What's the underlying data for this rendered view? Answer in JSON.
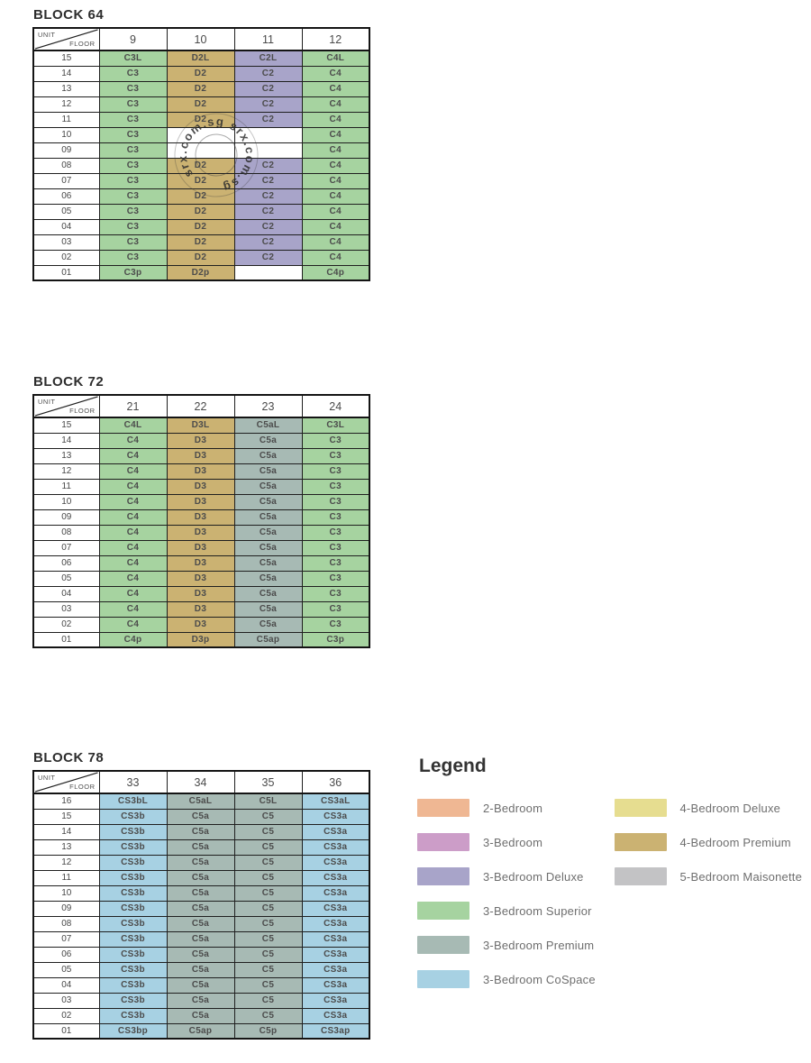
{
  "watermark": {
    "text": "srx.com.sg",
    "circle_text": "srx.com.sg  srx.com.sg"
  },
  "categories": {
    "b2": {
      "name": "2-Bedroom",
      "color": "#efb793"
    },
    "b3": {
      "name": "3-Bedroom",
      "color": "#cc9dc8"
    },
    "b3d": {
      "name": "3-Bedroom Deluxe",
      "color": "#a8a4c9"
    },
    "b3s": {
      "name": "3-Bedroom Superior",
      "color": "#a6d3a0"
    },
    "b3p": {
      "name": "3-Bedroom Premium",
      "color": "#a7bab4"
    },
    "b3c": {
      "name": "3-Bedroom CoSpace",
      "color": "#a7d1e3"
    },
    "b4d": {
      "name": "4-Bedroom Deluxe",
      "color": "#e6dd90"
    },
    "b4p": {
      "name": "4-Bedroom Premium",
      "color": "#cbb272"
    },
    "b5m": {
      "name": "5-Bedroom Maisonette",
      "color": "#c3c3c5"
    }
  },
  "chart_data": [
    {
      "type": "table",
      "title": "BLOCK 64",
      "corner_top": "UNIT",
      "corner_bottom": "FLOOR",
      "columns": [
        "9",
        "10",
        "11",
        "12"
      ],
      "rows": [
        {
          "floor": "15",
          "cells": [
            [
              "C3L",
              "b3s"
            ],
            [
              "D2L",
              "b4p"
            ],
            [
              "C2L",
              "b3d"
            ],
            [
              "C4L",
              "b3s"
            ]
          ]
        },
        {
          "floor": "14",
          "cells": [
            [
              "C3",
              "b3s"
            ],
            [
              "D2",
              "b4p"
            ],
            [
              "C2",
              "b3d"
            ],
            [
              "C4",
              "b3s"
            ]
          ]
        },
        {
          "floor": "13",
          "cells": [
            [
              "C3",
              "b3s"
            ],
            [
              "D2",
              "b4p"
            ],
            [
              "C2",
              "b3d"
            ],
            [
              "C4",
              "b3s"
            ]
          ]
        },
        {
          "floor": "12",
          "cells": [
            [
              "C3",
              "b3s"
            ],
            [
              "D2",
              "b4p"
            ],
            [
              "C2",
              "b3d"
            ],
            [
              "C4",
              "b3s"
            ]
          ]
        },
        {
          "floor": "11",
          "cells": [
            [
              "C3",
              "b3s"
            ],
            [
              "D2",
              "b4p"
            ],
            [
              "C2",
              "b3d"
            ],
            [
              "C4",
              "b3s"
            ]
          ]
        },
        {
          "floor": "10",
          "cells": [
            [
              "C3",
              "b3s"
            ],
            [
              "",
              ""
            ],
            [
              "",
              ""
            ],
            [
              "C4",
              "b3s"
            ]
          ]
        },
        {
          "floor": "09",
          "cells": [
            [
              "C3",
              "b3s"
            ],
            [
              "",
              ""
            ],
            [
              "",
              ""
            ],
            [
              "C4",
              "b3s"
            ]
          ]
        },
        {
          "floor": "08",
          "cells": [
            [
              "C3",
              "b3s"
            ],
            [
              "D2",
              "b4p"
            ],
            [
              "C2",
              "b3d"
            ],
            [
              "C4",
              "b3s"
            ]
          ]
        },
        {
          "floor": "07",
          "cells": [
            [
              "C3",
              "b3s"
            ],
            [
              "D2",
              "b4p"
            ],
            [
              "C2",
              "b3d"
            ],
            [
              "C4",
              "b3s"
            ]
          ]
        },
        {
          "floor": "06",
          "cells": [
            [
              "C3",
              "b3s"
            ],
            [
              "D2",
              "b4p"
            ],
            [
              "C2",
              "b3d"
            ],
            [
              "C4",
              "b3s"
            ]
          ]
        },
        {
          "floor": "05",
          "cells": [
            [
              "C3",
              "b3s"
            ],
            [
              "D2",
              "b4p"
            ],
            [
              "C2",
              "b3d"
            ],
            [
              "C4",
              "b3s"
            ]
          ]
        },
        {
          "floor": "04",
          "cells": [
            [
              "C3",
              "b3s"
            ],
            [
              "D2",
              "b4p"
            ],
            [
              "C2",
              "b3d"
            ],
            [
              "C4",
              "b3s"
            ]
          ]
        },
        {
          "floor": "03",
          "cells": [
            [
              "C3",
              "b3s"
            ],
            [
              "D2",
              "b4p"
            ],
            [
              "C2",
              "b3d"
            ],
            [
              "C4",
              "b3s"
            ]
          ]
        },
        {
          "floor": "02",
          "cells": [
            [
              "C3",
              "b3s"
            ],
            [
              "D2",
              "b4p"
            ],
            [
              "C2",
              "b3d"
            ],
            [
              "C4",
              "b3s"
            ]
          ]
        },
        {
          "floor": "01",
          "cells": [
            [
              "C3p",
              "b3s"
            ],
            [
              "D2p",
              "b4p"
            ],
            [
              "",
              ""
            ],
            [
              "C4p",
              "b3s"
            ]
          ]
        }
      ]
    },
    {
      "type": "table",
      "title": "BLOCK 72",
      "corner_top": "UNIT",
      "corner_bottom": "FLOOR",
      "columns": [
        "21",
        "22",
        "23",
        "24"
      ],
      "rows": [
        {
          "floor": "15",
          "cells": [
            [
              "C4L",
              "b3s"
            ],
            [
              "D3L",
              "b4p"
            ],
            [
              "C5aL",
              "b3p"
            ],
            [
              "C3L",
              "b3s"
            ]
          ]
        },
        {
          "floor": "14",
          "cells": [
            [
              "C4",
              "b3s"
            ],
            [
              "D3",
              "b4p"
            ],
            [
              "C5a",
              "b3p"
            ],
            [
              "C3",
              "b3s"
            ]
          ]
        },
        {
          "floor": "13",
          "cells": [
            [
              "C4",
              "b3s"
            ],
            [
              "D3",
              "b4p"
            ],
            [
              "C5a",
              "b3p"
            ],
            [
              "C3",
              "b3s"
            ]
          ]
        },
        {
          "floor": "12",
          "cells": [
            [
              "C4",
              "b3s"
            ],
            [
              "D3",
              "b4p"
            ],
            [
              "C5a",
              "b3p"
            ],
            [
              "C3",
              "b3s"
            ]
          ]
        },
        {
          "floor": "11",
          "cells": [
            [
              "C4",
              "b3s"
            ],
            [
              "D3",
              "b4p"
            ],
            [
              "C5a",
              "b3p"
            ],
            [
              "C3",
              "b3s"
            ]
          ]
        },
        {
          "floor": "10",
          "cells": [
            [
              "C4",
              "b3s"
            ],
            [
              "D3",
              "b4p"
            ],
            [
              "C5a",
              "b3p"
            ],
            [
              "C3",
              "b3s"
            ]
          ]
        },
        {
          "floor": "09",
          "cells": [
            [
              "C4",
              "b3s"
            ],
            [
              "D3",
              "b4p"
            ],
            [
              "C5a",
              "b3p"
            ],
            [
              "C3",
              "b3s"
            ]
          ]
        },
        {
          "floor": "08",
          "cells": [
            [
              "C4",
              "b3s"
            ],
            [
              "D3",
              "b4p"
            ],
            [
              "C5a",
              "b3p"
            ],
            [
              "C3",
              "b3s"
            ]
          ]
        },
        {
          "floor": "07",
          "cells": [
            [
              "C4",
              "b3s"
            ],
            [
              "D3",
              "b4p"
            ],
            [
              "C5a",
              "b3p"
            ],
            [
              "C3",
              "b3s"
            ]
          ]
        },
        {
          "floor": "06",
          "cells": [
            [
              "C4",
              "b3s"
            ],
            [
              "D3",
              "b4p"
            ],
            [
              "C5a",
              "b3p"
            ],
            [
              "C3",
              "b3s"
            ]
          ]
        },
        {
          "floor": "05",
          "cells": [
            [
              "C4",
              "b3s"
            ],
            [
              "D3",
              "b4p"
            ],
            [
              "C5a",
              "b3p"
            ],
            [
              "C3",
              "b3s"
            ]
          ]
        },
        {
          "floor": "04",
          "cells": [
            [
              "C4",
              "b3s"
            ],
            [
              "D3",
              "b4p"
            ],
            [
              "C5a",
              "b3p"
            ],
            [
              "C3",
              "b3s"
            ]
          ]
        },
        {
          "floor": "03",
          "cells": [
            [
              "C4",
              "b3s"
            ],
            [
              "D3",
              "b4p"
            ],
            [
              "C5a",
              "b3p"
            ],
            [
              "C3",
              "b3s"
            ]
          ]
        },
        {
          "floor": "02",
          "cells": [
            [
              "C4",
              "b3s"
            ],
            [
              "D3",
              "b4p"
            ],
            [
              "C5a",
              "b3p"
            ],
            [
              "C3",
              "b3s"
            ]
          ]
        },
        {
          "floor": "01",
          "cells": [
            [
              "C4p",
              "b3s"
            ],
            [
              "D3p",
              "b4p"
            ],
            [
              "C5ap",
              "b3p"
            ],
            [
              "C3p",
              "b3s"
            ]
          ]
        }
      ]
    },
    {
      "type": "table",
      "title": "BLOCK 78",
      "corner_top": "UNIT",
      "corner_bottom": "FLOOR",
      "columns": [
        "33",
        "34",
        "35",
        "36"
      ],
      "rows": [
        {
          "floor": "16",
          "cells": [
            [
              "CS3bL",
              "b3c"
            ],
            [
              "C5aL",
              "b3p"
            ],
            [
              "C5L",
              "b3p"
            ],
            [
              "CS3aL",
              "b3c"
            ]
          ]
        },
        {
          "floor": "15",
          "cells": [
            [
              "CS3b",
              "b3c"
            ],
            [
              "C5a",
              "b3p"
            ],
            [
              "C5",
              "b3p"
            ],
            [
              "CS3a",
              "b3c"
            ]
          ]
        },
        {
          "floor": "14",
          "cells": [
            [
              "CS3b",
              "b3c"
            ],
            [
              "C5a",
              "b3p"
            ],
            [
              "C5",
              "b3p"
            ],
            [
              "CS3a",
              "b3c"
            ]
          ]
        },
        {
          "floor": "13",
          "cells": [
            [
              "CS3b",
              "b3c"
            ],
            [
              "C5a",
              "b3p"
            ],
            [
              "C5",
              "b3p"
            ],
            [
              "CS3a",
              "b3c"
            ]
          ]
        },
        {
          "floor": "12",
          "cells": [
            [
              "CS3b",
              "b3c"
            ],
            [
              "C5a",
              "b3p"
            ],
            [
              "C5",
              "b3p"
            ],
            [
              "CS3a",
              "b3c"
            ]
          ]
        },
        {
          "floor": "11",
          "cells": [
            [
              "CS3b",
              "b3c"
            ],
            [
              "C5a",
              "b3p"
            ],
            [
              "C5",
              "b3p"
            ],
            [
              "CS3a",
              "b3c"
            ]
          ]
        },
        {
          "floor": "10",
          "cells": [
            [
              "CS3b",
              "b3c"
            ],
            [
              "C5a",
              "b3p"
            ],
            [
              "C5",
              "b3p"
            ],
            [
              "CS3a",
              "b3c"
            ]
          ]
        },
        {
          "floor": "09",
          "cells": [
            [
              "CS3b",
              "b3c"
            ],
            [
              "C5a",
              "b3p"
            ],
            [
              "C5",
              "b3p"
            ],
            [
              "CS3a",
              "b3c"
            ]
          ]
        },
        {
          "floor": "08",
          "cells": [
            [
              "CS3b",
              "b3c"
            ],
            [
              "C5a",
              "b3p"
            ],
            [
              "C5",
              "b3p"
            ],
            [
              "CS3a",
              "b3c"
            ]
          ]
        },
        {
          "floor": "07",
          "cells": [
            [
              "CS3b",
              "b3c"
            ],
            [
              "C5a",
              "b3p"
            ],
            [
              "C5",
              "b3p"
            ],
            [
              "CS3a",
              "b3c"
            ]
          ]
        },
        {
          "floor": "06",
          "cells": [
            [
              "CS3b",
              "b3c"
            ],
            [
              "C5a",
              "b3p"
            ],
            [
              "C5",
              "b3p"
            ],
            [
              "CS3a",
              "b3c"
            ]
          ]
        },
        {
          "floor": "05",
          "cells": [
            [
              "CS3b",
              "b3c"
            ],
            [
              "C5a",
              "b3p"
            ],
            [
              "C5",
              "b3p"
            ],
            [
              "CS3a",
              "b3c"
            ]
          ]
        },
        {
          "floor": "04",
          "cells": [
            [
              "CS3b",
              "b3c"
            ],
            [
              "C5a",
              "b3p"
            ],
            [
              "C5",
              "b3p"
            ],
            [
              "CS3a",
              "b3c"
            ]
          ]
        },
        {
          "floor": "03",
          "cells": [
            [
              "CS3b",
              "b3c"
            ],
            [
              "C5a",
              "b3p"
            ],
            [
              "C5",
              "b3p"
            ],
            [
              "CS3a",
              "b3c"
            ]
          ]
        },
        {
          "floor": "02",
          "cells": [
            [
              "CS3b",
              "b3c"
            ],
            [
              "C5a",
              "b3p"
            ],
            [
              "C5",
              "b3p"
            ],
            [
              "CS3a",
              "b3c"
            ]
          ]
        },
        {
          "floor": "01",
          "cells": [
            [
              "CS3bp",
              "b3c"
            ],
            [
              "C5ap",
              "b3p"
            ],
            [
              "C5p",
              "b3p"
            ],
            [
              "CS3ap",
              "b3c"
            ]
          ]
        }
      ]
    },
    {
      "type": "legend",
      "title": "Legend",
      "columns": [
        [
          "b2",
          "b3",
          "b3d",
          "b3s",
          "b3p",
          "b3c"
        ],
        [
          "b4d",
          "b4p",
          "b5m"
        ]
      ]
    }
  ]
}
